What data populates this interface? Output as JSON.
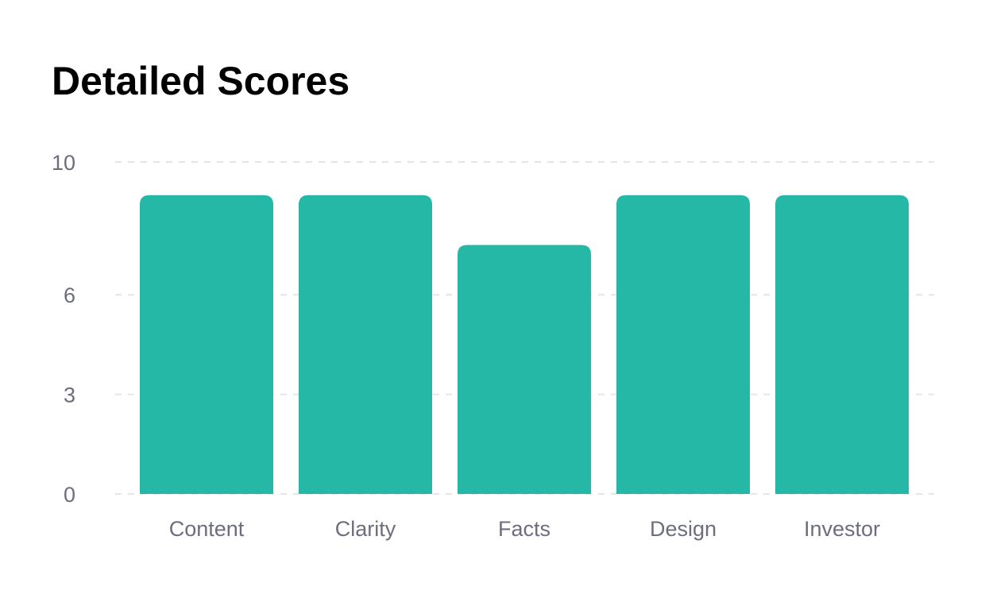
{
  "chart_data": {
    "type": "bar",
    "title": "Detailed Scores",
    "xlabel": "",
    "ylabel": "",
    "categories": [
      "Content",
      "Clarity",
      "Facts",
      "Design",
      "Investor"
    ],
    "values": [
      9,
      9,
      7.5,
      9,
      9
    ],
    "ylim": [
      0,
      10
    ],
    "yticks": [
      0,
      3,
      6,
      10
    ],
    "ytick_labels": [
      "0",
      "3",
      "6",
      "10"
    ],
    "grid": "horizontal dashed",
    "legend": "none",
    "colors": {
      "bar": "#26b8a6",
      "grid": "#e3e5e8",
      "tick_text": "#6c6e7d",
      "title": "#000000"
    }
  }
}
